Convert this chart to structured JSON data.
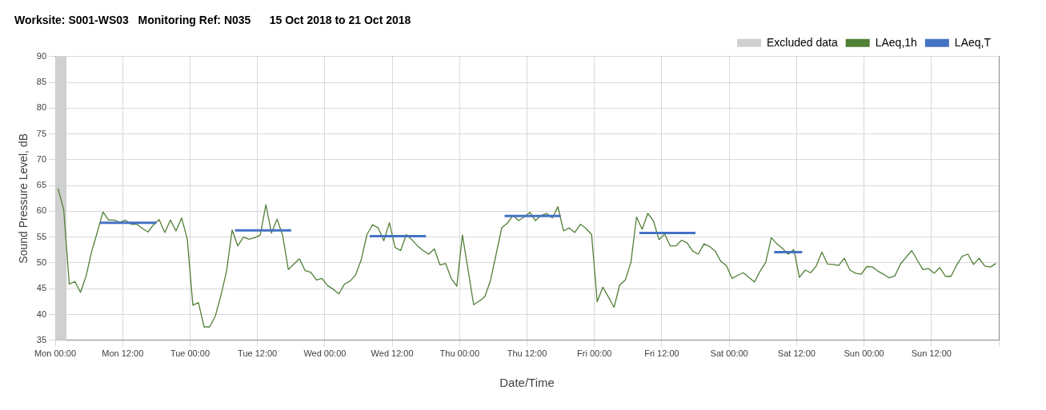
{
  "chart_data": {
    "type": "line",
    "title": "Worksite: S001-WS03   Monitoring Ref: N035      15 Oct 2018 to 21 Oct 2018",
    "xlabel": "Date/Time",
    "ylabel": "Sound Pressure Level, dB",
    "xlim": [
      "2018-10-15T00:00",
      "2018-10-22T00:00"
    ],
    "xticks": [
      {
        "value": "2018-10-15T00:00",
        "label": "Mon 00:00"
      },
      {
        "value": "2018-10-15T12:00",
        "label": "Mon 12:00"
      },
      {
        "value": "2018-10-16T00:00",
        "label": "Tue 00:00"
      },
      {
        "value": "2018-10-16T12:00",
        "label": "Tue 12:00"
      },
      {
        "value": "2018-10-17T00:00",
        "label": "Wed 00:00"
      },
      {
        "value": "2018-10-17T12:00",
        "label": "Wed 12:00"
      },
      {
        "value": "2018-10-18T00:00",
        "label": "Thu 00:00"
      },
      {
        "value": "2018-10-18T12:00",
        "label": "Thu 12:00"
      },
      {
        "value": "2018-10-19T00:00",
        "label": "Fri 00:00"
      },
      {
        "value": "2018-10-19T12:00",
        "label": "Fri 12:00"
      },
      {
        "value": "2018-10-20T00:00",
        "label": "Sat 00:00"
      },
      {
        "value": "2018-10-20T12:00",
        "label": "Sat 12:00"
      },
      {
        "value": "2018-10-21T00:00",
        "label": "Sun 00:00"
      },
      {
        "value": "2018-10-21T12:00",
        "label": "Sun 12:00"
      },
      {
        "value": "2018-10-22T00:00",
        "label": null
      }
    ],
    "ylim": [
      35,
      90
    ],
    "yticks": [
      35,
      40,
      45,
      50,
      55,
      60,
      65,
      70,
      75,
      80,
      85,
      90
    ],
    "grid": true,
    "legend": "top right",
    "bands": [
      {
        "axis": "x",
        "from": "2018-10-15T00:00",
        "to": "2018-10-15T02:00",
        "label": "Excluded data",
        "color": "#d0d0d0"
      }
    ],
    "series": [
      {
        "name": "LAeq,1h",
        "color": "#507f36",
        "x": [
          "2018-10-15T00:30",
          "2018-10-15T01:30",
          "2018-10-15T02:30",
          "2018-10-15T03:30",
          "2018-10-15T04:30",
          "2018-10-15T05:30",
          "2018-10-15T06:30",
          "2018-10-15T07:30",
          "2018-10-15T08:30",
          "2018-10-15T09:30",
          "2018-10-15T10:30",
          "2018-10-15T11:30",
          "2018-10-15T12:30",
          "2018-10-15T13:30",
          "2018-10-15T14:30",
          "2018-10-15T15:30",
          "2018-10-15T16:30",
          "2018-10-15T17:30",
          "2018-10-15T18:30",
          "2018-10-15T19:30",
          "2018-10-15T20:30",
          "2018-10-15T21:30",
          "2018-10-15T22:30",
          "2018-10-15T23:30",
          "2018-10-16T00:30",
          "2018-10-16T01:30",
          "2018-10-16T02:30",
          "2018-10-16T03:30",
          "2018-10-16T04:30",
          "2018-10-16T05:30",
          "2018-10-16T06:30",
          "2018-10-16T07:30",
          "2018-10-16T08:30",
          "2018-10-16T09:30",
          "2018-10-16T10:30",
          "2018-10-16T11:30",
          "2018-10-16T12:30",
          "2018-10-16T13:30",
          "2018-10-16T14:30",
          "2018-10-16T15:30",
          "2018-10-16T16:30",
          "2018-10-16T17:30",
          "2018-10-16T18:30",
          "2018-10-16T19:30",
          "2018-10-16T20:30",
          "2018-10-16T21:30",
          "2018-10-16T22:30",
          "2018-10-16T23:30",
          "2018-10-17T00:30",
          "2018-10-17T01:30",
          "2018-10-17T02:30",
          "2018-10-17T03:30",
          "2018-10-17T04:30",
          "2018-10-17T05:30",
          "2018-10-17T06:30",
          "2018-10-17T07:30",
          "2018-10-17T08:30",
          "2018-10-17T09:30",
          "2018-10-17T10:30",
          "2018-10-17T11:30",
          "2018-10-17T12:30",
          "2018-10-17T13:30",
          "2018-10-17T14:30",
          "2018-10-17T15:30",
          "2018-10-17T16:30",
          "2018-10-17T17:30",
          "2018-10-17T18:30",
          "2018-10-17T19:30",
          "2018-10-17T20:30",
          "2018-10-17T21:30",
          "2018-10-17T22:30",
          "2018-10-17T23:30",
          "2018-10-18T00:30",
          "2018-10-18T01:30",
          "2018-10-18T02:30",
          "2018-10-18T03:30",
          "2018-10-18T04:30",
          "2018-10-18T05:30",
          "2018-10-18T06:30",
          "2018-10-18T07:30",
          "2018-10-18T08:30",
          "2018-10-18T09:30",
          "2018-10-18T10:30",
          "2018-10-18T11:30",
          "2018-10-18T12:30",
          "2018-10-18T13:30",
          "2018-10-18T14:30",
          "2018-10-18T15:30",
          "2018-10-18T16:30",
          "2018-10-18T17:30",
          "2018-10-18T18:30",
          "2018-10-18T19:30",
          "2018-10-18T20:30",
          "2018-10-18T21:30",
          "2018-10-18T22:30",
          "2018-10-18T23:30",
          "2018-10-19T00:30",
          "2018-10-19T01:30",
          "2018-10-19T02:30",
          "2018-10-19T03:30",
          "2018-10-19T04:30",
          "2018-10-19T05:30",
          "2018-10-19T06:30",
          "2018-10-19T07:30",
          "2018-10-19T08:30",
          "2018-10-19T09:30",
          "2018-10-19T10:30",
          "2018-10-19T11:30",
          "2018-10-19T12:30",
          "2018-10-19T13:30",
          "2018-10-19T14:30",
          "2018-10-19T15:30",
          "2018-10-19T16:30",
          "2018-10-19T17:30",
          "2018-10-19T18:30",
          "2018-10-19T19:30",
          "2018-10-19T20:30",
          "2018-10-19T21:30",
          "2018-10-19T22:30",
          "2018-10-19T23:30",
          "2018-10-20T00:30",
          "2018-10-20T01:30",
          "2018-10-20T02:30",
          "2018-10-20T03:30",
          "2018-10-20T04:30",
          "2018-10-20T05:30",
          "2018-10-20T06:30",
          "2018-10-20T07:30",
          "2018-10-20T08:30",
          "2018-10-20T09:30",
          "2018-10-20T10:30",
          "2018-10-20T11:30",
          "2018-10-20T12:30",
          "2018-10-20T13:30",
          "2018-10-20T14:30",
          "2018-10-20T15:30",
          "2018-10-20T16:30",
          "2018-10-20T17:30",
          "2018-10-20T18:30",
          "2018-10-20T19:30",
          "2018-10-20T20:30",
          "2018-10-20T21:30",
          "2018-10-20T22:30",
          "2018-10-20T23:30",
          "2018-10-21T00:30",
          "2018-10-21T01:30",
          "2018-10-21T02:30",
          "2018-10-21T03:30",
          "2018-10-21T04:30",
          "2018-10-21T05:30",
          "2018-10-21T06:30",
          "2018-10-21T07:30",
          "2018-10-21T08:30",
          "2018-10-21T09:30",
          "2018-10-21T10:30",
          "2018-10-21T11:30",
          "2018-10-21T12:30",
          "2018-10-21T13:30",
          "2018-10-21T14:30",
          "2018-10-21T15:30",
          "2018-10-21T16:30",
          "2018-10-21T17:30",
          "2018-10-21T18:30",
          "2018-10-21T19:30",
          "2018-10-21T20:30",
          "2018-10-21T21:30",
          "2018-10-21T22:30",
          "2018-10-21T23:30"
        ],
        "values": [
          64.4,
          60.4,
          45.9,
          46.4,
          44.3,
          47.5,
          52.3,
          56,
          59.9,
          58.3,
          58.3,
          57.9,
          58.3,
          57.5,
          57.5,
          56.7,
          56,
          57.4,
          58.4,
          55.9,
          58.3,
          56.2,
          58.7,
          54.7,
          41.8,
          42.3,
          37.6,
          37.6,
          39.7,
          43.7,
          48.4,
          56.4,
          53.3,
          55,
          54.6,
          54.9,
          55.4,
          61.3,
          55.8,
          58.5,
          55.3,
          48.7,
          49.8,
          50.8,
          48.5,
          48.2,
          46.7,
          47,
          45.6,
          44.9,
          44,
          45.9,
          46.5,
          47.7,
          50.7,
          55.5,
          57.4,
          56.8,
          54.3,
          57.8,
          53,
          52.4,
          55.5,
          54.5,
          53.3,
          52.4,
          51.7,
          52.7,
          49.6,
          49.9,
          47,
          45.5,
          55.4,
          48.7,
          41.9,
          42.6,
          43.5,
          46.6,
          51.7,
          56.8,
          57.7,
          59.2,
          58.2,
          58.9,
          59.8,
          58.2,
          59.2,
          59.6,
          58.7,
          60.9,
          56.2,
          56.8,
          55.9,
          57.5,
          56.7,
          55.5,
          42.5,
          45.3,
          43.4,
          41.4,
          45.7,
          46.7,
          50.1,
          58.9,
          56.5,
          59.6,
          58.2,
          54.5,
          55.6,
          53.3,
          53.3,
          54.4,
          53.9,
          52.3,
          51.7,
          53.7,
          53.2,
          52.3,
          50.3,
          49.5,
          47,
          47.6,
          48.1,
          47.2,
          46.3,
          48.4,
          50.1,
          54.9,
          53.7,
          52.8,
          51.7,
          52.6,
          47.2,
          48.6,
          48.1,
          49.4,
          52.1,
          49.8,
          49.7,
          49.5,
          50.9,
          48.6,
          48,
          47.8,
          49.3,
          49.2,
          48.4,
          47.8,
          47.1,
          47.5,
          49.8,
          51.1,
          52.4,
          50.5,
          48.7,
          48.9,
          48,
          49.1,
          47.4,
          47.4,
          49.6,
          51.3,
          51.7,
          49.7,
          50.9,
          49.4,
          49.2,
          49.9
        ]
      },
      {
        "name": "LAeq,T",
        "color": "#4472c4",
        "x": [
          "2018-10-15T08:00",
          "2018-10-15T18:00"
        ],
        "values": [
          57.8,
          57.8
        ]
      },
      {
        "color": "#4472c4",
        "x": [
          "2018-10-16T08:00",
          "2018-10-16T18:00"
        ],
        "values": [
          56.3,
          56.3
        ]
      },
      {
        "color": "#4472c4",
        "x": [
          "2018-10-17T08:00",
          "2018-10-17T18:00"
        ],
        "values": [
          55.2,
          55.2
        ]
      },
      {
        "color": "#4472c4",
        "x": [
          "2018-10-18T08:00",
          "2018-10-18T18:00"
        ],
        "values": [
          59.1,
          59.1
        ]
      },
      {
        "color": "#4472c4",
        "x": [
          "2018-10-19T08:00",
          "2018-10-19T18:00"
        ],
        "values": [
          55.8,
          55.8
        ]
      },
      {
        "color": "#4472c4",
        "x": [
          "2018-10-20T08:00",
          "2018-10-20T13:00"
        ],
        "values": [
          52.1,
          52.1
        ]
      }
    ]
  }
}
